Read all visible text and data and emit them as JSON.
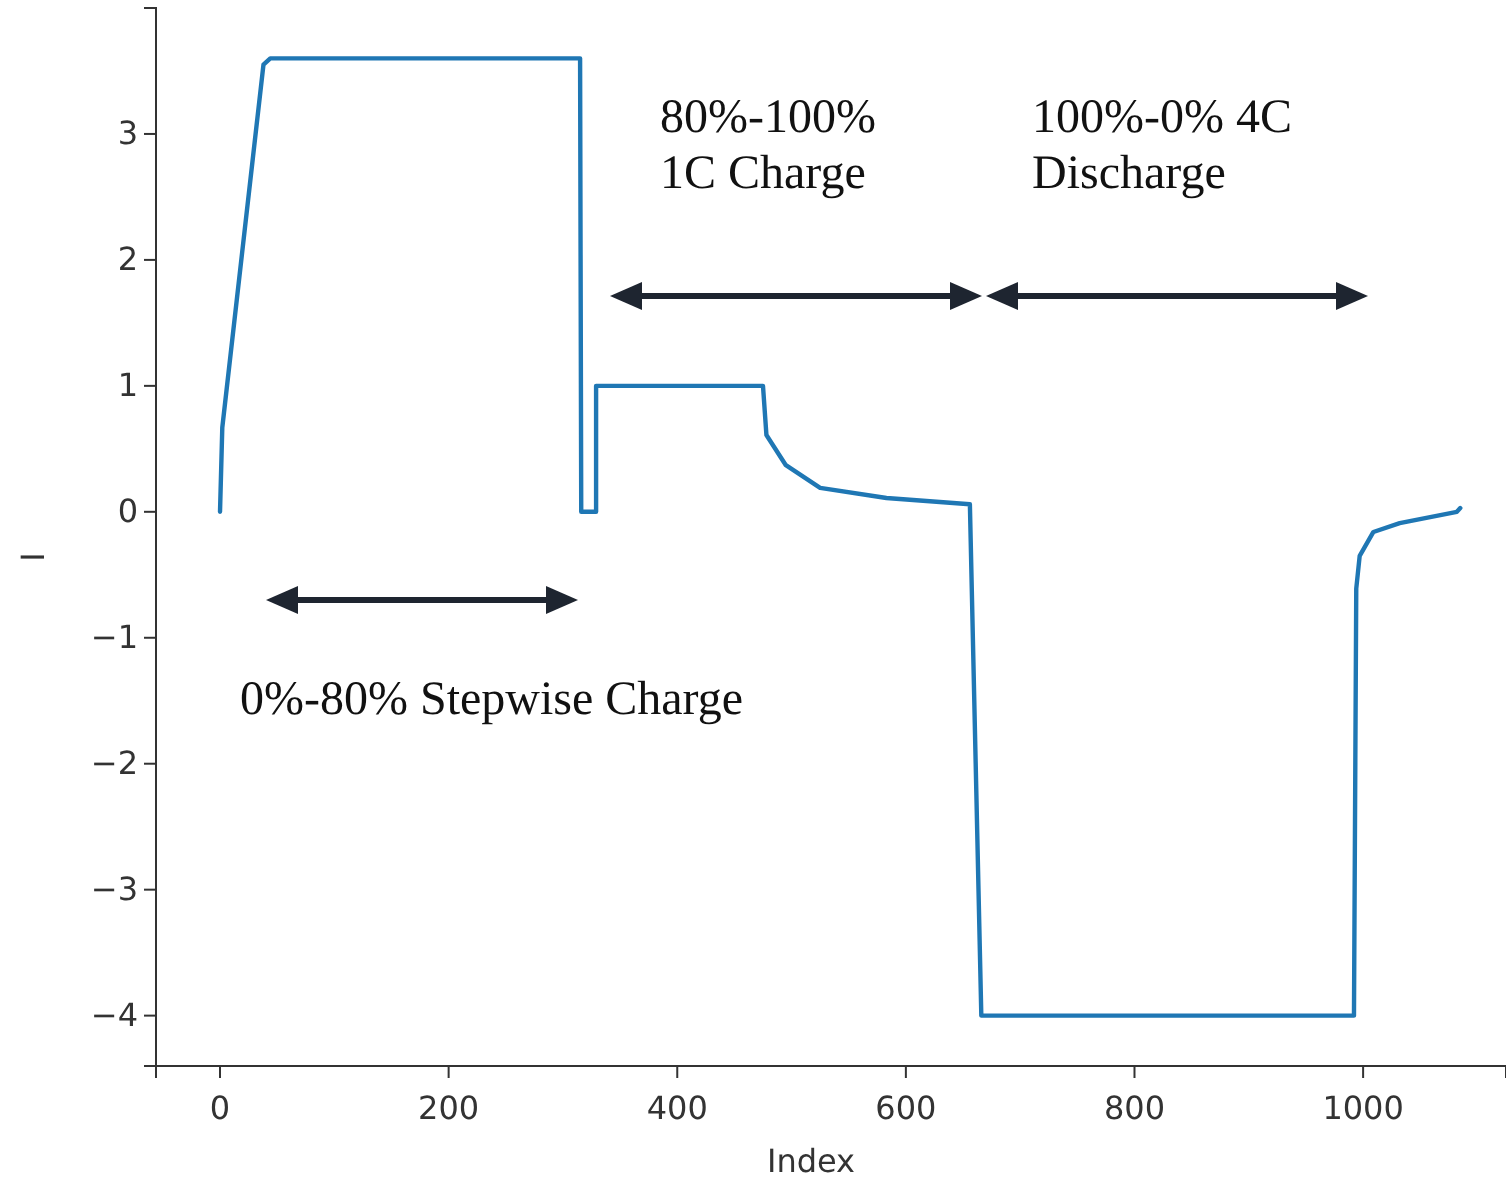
{
  "chart_data": {
    "type": "line",
    "xlabel": "Index",
    "ylabel": "I",
    "xlim": [
      -56,
      1125
    ],
    "ylim": [
      -4.4,
      4.0
    ],
    "xticks": [
      0,
      200,
      400,
      600,
      800,
      1000
    ],
    "yticks": [
      {
        "value": -4,
        "label": "−4"
      },
      {
        "value": -3,
        "label": "−3"
      },
      {
        "value": -2,
        "label": "−2"
      },
      {
        "value": -1,
        "label": "−1"
      },
      0,
      1,
      2,
      3
    ],
    "grid": false,
    "marker": "none",
    "line_style": "solid",
    "annotations": [
      "0%-80% Stepwise Charge",
      "80%-100%\n1C Charge",
      "100%-0% 4C\nDischarge"
    ],
    "series": [
      {
        "color": "#1f77b4",
        "x": [
          0,
          2,
          38,
          44,
          315,
          316,
          329,
          329,
          475,
          478,
          495,
          525,
          583,
          656,
          666,
          992,
          994,
          997,
          1009,
          1032,
          1082,
          1085
        ],
        "values": [
          0,
          0.67,
          3.55,
          3.6,
          3.6,
          0,
          0,
          1.0,
          1.0,
          0.61,
          0.37,
          0.19,
          0.11,
          0.06,
          -4.0,
          -4.0,
          -0.61,
          -0.35,
          -0.16,
          -0.09,
          0.0,
          0.03
        ]
      }
    ]
  }
}
